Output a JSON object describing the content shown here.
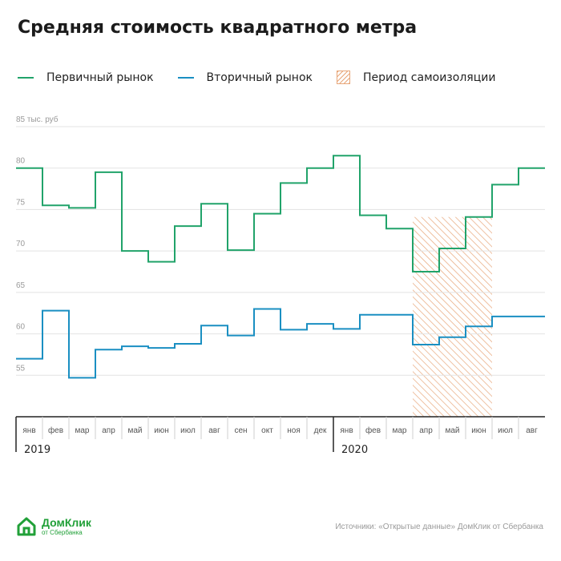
{
  "title": "Средняя стоимость квадратного метра",
  "legend": {
    "primary": "Первичный рынок",
    "secondary": "Вторичный рынок",
    "period": "Период самоизоляции"
  },
  "colors": {
    "primary": "#21a36a",
    "secondary": "#1a8fc2",
    "hatch": "#e8a77a",
    "grid": "#e3e3e3",
    "axis": "#222222"
  },
  "footer": {
    "logo_name": "ДомКлик",
    "logo_sub": "от Сбербанка",
    "source": "Источники: «Открытые данные» ДомКлик от Сбербанка"
  },
  "chart_data": {
    "type": "line",
    "step": true,
    "categories": [
      "янв",
      "фев",
      "мар",
      "апр",
      "май",
      "июн",
      "июл",
      "авг",
      "сен",
      "окт",
      "ноя",
      "дек",
      "янв",
      "фев",
      "мар",
      "апр",
      "май",
      "июн",
      "июл",
      "авг"
    ],
    "year_labels": [
      {
        "label": "2019",
        "start_index": 0
      },
      {
        "label": "2020",
        "start_index": 12
      }
    ],
    "y_ticks": [
      55,
      60,
      65,
      70,
      75,
      80
    ],
    "y_top_label": "85 тыс. руб",
    "y_top_value": 85,
    "ylim": [
      50,
      85
    ],
    "series": [
      {
        "name": "Первичный рынок",
        "key": "primary",
        "values": [
          80.0,
          75.5,
          75.2,
          79.5,
          70.0,
          68.7,
          73.0,
          75.7,
          70.1,
          74.5,
          78.2,
          80.0,
          81.5,
          74.3,
          72.7,
          67.5,
          70.3,
          74.1,
          78.0,
          80.0
        ]
      },
      {
        "name": "Вторичный рынок",
        "key": "secondary",
        "values": [
          57.0,
          62.8,
          54.7,
          58.1,
          58.5,
          58.3,
          58.8,
          61.0,
          59.8,
          63.0,
          60.5,
          61.2,
          60.6,
          62.3,
          62.3,
          58.7,
          59.6,
          60.9,
          62.1,
          62.1
        ]
      }
    ],
    "highlight": {
      "start_index": 15,
      "end_index": 17,
      "label": "Период самоизоляции"
    }
  }
}
